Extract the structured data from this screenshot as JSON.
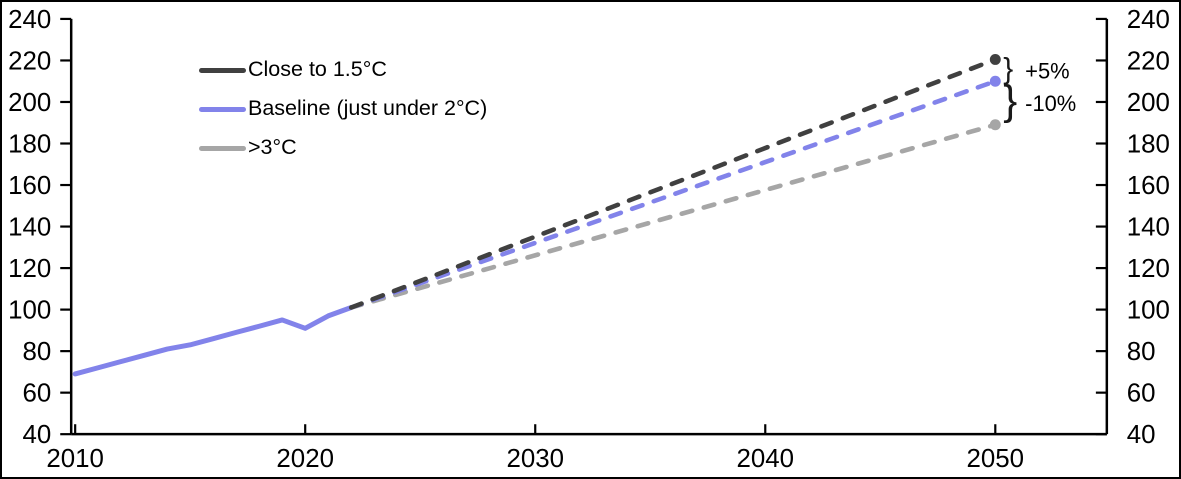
{
  "chart_data": {
    "type": "line",
    "title": "",
    "xlabel": "",
    "ylabel": "",
    "xlim": [
      2010,
      2050
    ],
    "ylim": [
      40,
      240
    ],
    "grid": false,
    "legend_position": "top-left-inside",
    "x_ticks": [
      2010,
      2020,
      2030,
      2040,
      2050
    ],
    "y_ticks": [
      40,
      60,
      80,
      100,
      120,
      140,
      160,
      180,
      200,
      220,
      240
    ],
    "y_axis_sides": [
      "left",
      "right"
    ],
    "series": [
      {
        "id": "historical",
        "style": "solid",
        "color": "#8283ea",
        "in_legend": false,
        "x": [
          2010,
          2011,
          2012,
          2013,
          2014,
          2015,
          2016,
          2017,
          2018,
          2019,
          2020,
          2021,
          2022
        ],
        "values": [
          69,
          72,
          75,
          78,
          81,
          83,
          86,
          89,
          92,
          95,
          91,
          97,
          101
        ]
      },
      {
        "id": "close-to-1-5c",
        "name": "Close to 1.5°C",
        "style": "dashed",
        "color": "#404040",
        "in_legend": true,
        "end_marker": true,
        "x": [
          2022,
          2050
        ],
        "values": [
          101,
          220.5
        ]
      },
      {
        "id": "baseline",
        "name": "Baseline (just under 2°C)",
        "style": "dashed",
        "color": "#8283ea",
        "in_legend": true,
        "end_marker": true,
        "x": [
          2022,
          2050
        ],
        "values": [
          101,
          210
        ]
      },
      {
        "id": "above-3c",
        "name": ">3°C",
        "style": "dashed",
        "color": "#a6a6a6",
        "in_legend": true,
        "end_marker": true,
        "x": [
          2022,
          2050
        ],
        "values": [
          101,
          189
        ]
      }
    ],
    "annotations": [
      {
        "text": "+5%",
        "between": [
          "close-to-1-5c",
          "baseline"
        ]
      },
      {
        "text": "-10%",
        "between": [
          "baseline",
          "above-3c"
        ]
      }
    ]
  }
}
